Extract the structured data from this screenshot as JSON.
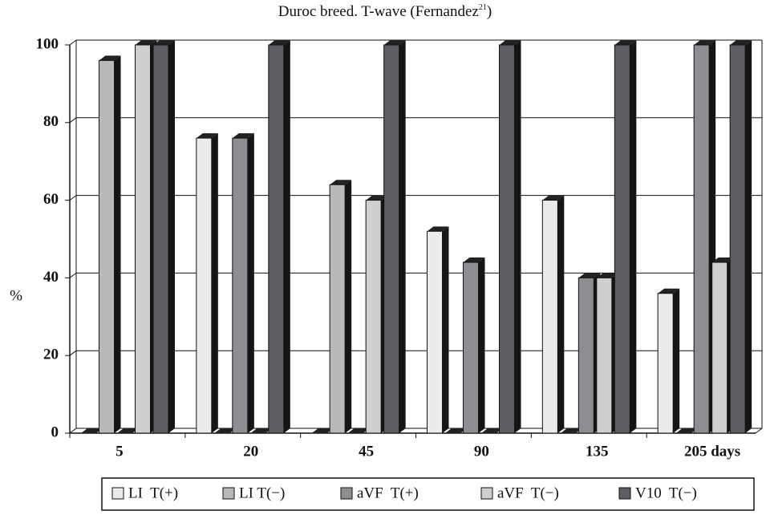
{
  "chart_data": {
    "type": "bar3d",
    "title": "Duroc breed. T-wave (Fernandez",
    "title_ref": "21",
    "title_end": ")",
    "y_label": "%",
    "categories": [
      "5",
      "20",
      "45",
      "90",
      "135",
      "205 days"
    ],
    "series": [
      {
        "name": "LI  T(+)",
        "color": "#ebebeb",
        "values": [
          0,
          76,
          0,
          52,
          60,
          36
        ]
      },
      {
        "name": "LI T(−)",
        "color": "#b9b9bc",
        "values": [
          96,
          0,
          64,
          0,
          0,
          0
        ]
      },
      {
        "name": "aVF  T(+)",
        "color": "#8e8e92",
        "values": [
          0,
          76,
          0,
          44,
          40,
          100
        ]
      },
      {
        "name": "aVF  T(−)",
        "color": "#cfcfd1",
        "values": [
          100,
          0,
          60,
          0,
          40,
          44
        ]
      },
      {
        "name": "V10  T(−)",
        "color": "#5e5e62",
        "values": [
          100,
          100,
          100,
          100,
          100,
          100
        ]
      }
    ],
    "ylim": [
      0,
      100
    ],
    "yticks": [
      0,
      20,
      40,
      60,
      80,
      100
    ],
    "grid": true
  }
}
